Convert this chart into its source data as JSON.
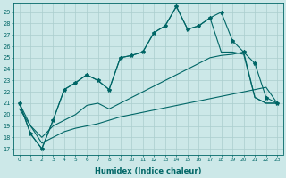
{
  "title": "",
  "xlabel": "Humidex (Indice chaleur)",
  "ylabel": "",
  "bg_color": "#cce8e8",
  "grid_color": "#aacece",
  "line_color": "#006666",
  "x_ticks": [
    0,
    1,
    2,
    3,
    4,
    5,
    6,
    7,
    8,
    9,
    10,
    11,
    12,
    13,
    14,
    15,
    16,
    17,
    18,
    19,
    20,
    21,
    22,
    23
  ],
  "ylim": [
    16.5,
    29.8
  ],
  "xlim": [
    -0.5,
    23.5
  ],
  "yticks": [
    17,
    18,
    19,
    20,
    21,
    22,
    23,
    24,
    25,
    26,
    27,
    28,
    29
  ],
  "humidex_jagged": [
    21.0,
    18.3,
    17.0,
    19.5,
    22.2,
    22.8,
    23.5,
    23.0,
    22.2,
    25.0,
    25.2,
    25.5,
    27.2,
    27.8,
    29.5,
    27.5,
    27.8,
    28.5,
    29.0,
    26.5,
    25.5,
    24.5,
    21.5,
    21.0
  ],
  "humidex_upper": [
    21.0,
    18.3,
    17.0,
    19.5,
    22.2,
    22.8,
    23.5,
    23.0,
    22.2,
    25.0,
    25.2,
    25.5,
    27.2,
    27.8,
    29.5,
    27.5,
    27.8,
    28.5,
    25.5,
    25.5,
    25.3,
    21.5,
    21.0,
    21.0
  ],
  "humidex_lower": [
    21.0,
    19.0,
    18.0,
    19.0,
    19.5,
    20.0,
    20.8,
    21.0,
    20.5,
    21.0,
    21.5,
    22.0,
    22.5,
    23.0,
    23.5,
    24.0,
    24.5,
    25.0,
    25.2,
    25.3,
    25.5,
    21.5,
    21.0,
    21.0
  ],
  "humidex_flat": [
    20.5,
    19.0,
    17.5,
    18.0,
    18.5,
    18.8,
    19.0,
    19.2,
    19.5,
    19.8,
    20.0,
    20.2,
    20.4,
    20.6,
    20.8,
    21.0,
    21.2,
    21.4,
    21.6,
    21.8,
    22.0,
    22.2,
    22.4,
    21.0
  ]
}
